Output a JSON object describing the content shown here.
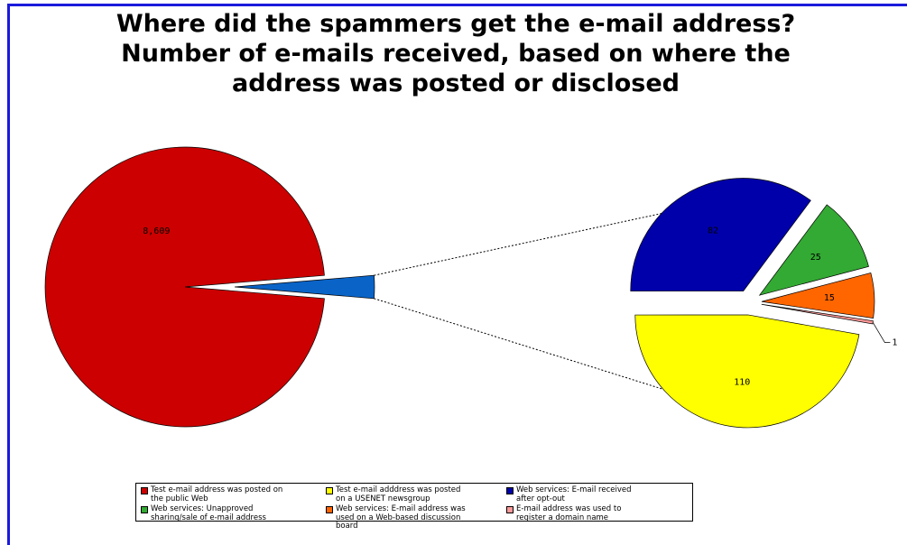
{
  "chart_data": {
    "type": "pie-of-pie",
    "title": "Where did the spammers get the e-mail address?",
    "subtitle": "Number of e-mails received, based on where the address was posted or disclosed",
    "categories": [
      "Test e-mail address was posted on the public Web",
      "Test e-mail adddress was posted on a USENET newsgroup",
      "Web services: E-mail received after opt-out",
      "Web services: Unapproved sharing/sale of e-mail address",
      "Web services: E-mail address was used on a Web-based discussion board",
      "E-mail address was used to register a domain name"
    ],
    "values": [
      8609,
      110,
      82,
      25,
      15,
      1
    ],
    "value_labels": [
      "8,609",
      "110",
      "82",
      "25",
      "15",
      "1"
    ],
    "colors": [
      "#cc0000",
      "#ffff00",
      "#0000aa",
      "#33aa33",
      "#ff6600",
      "#ff9999"
    ],
    "other_color": "#0a64c8"
  }
}
